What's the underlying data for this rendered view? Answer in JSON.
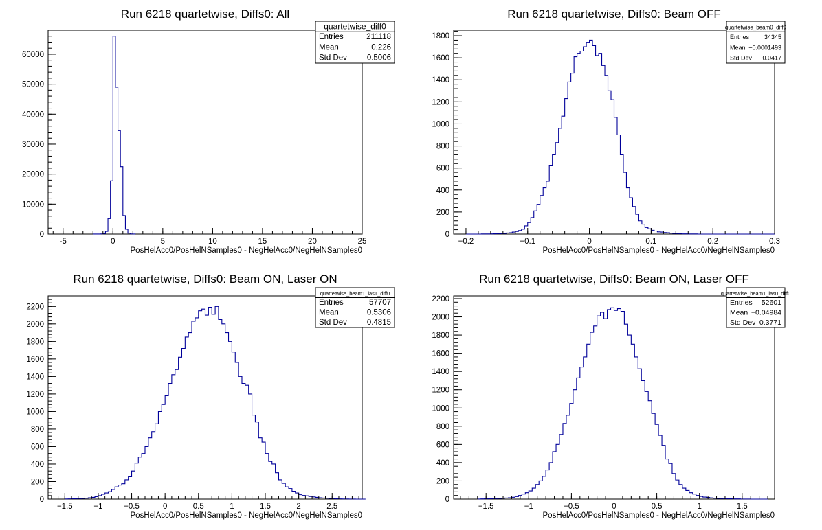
{
  "chart_data": [
    {
      "type": "histogram",
      "title": "Run 6218 quartetwise, Diffs0: All",
      "xlabel": "PosHelAcc0/PosHelNSamples0 - NegHelAcc0/NegHelNSamples0",
      "ylabel": "",
      "xlim": [
        -6.5,
        25
      ],
      "ylim": [
        0,
        68000
      ],
      "xticks": [
        "-5",
        "0",
        "5",
        "10",
        "15",
        "20",
        "25"
      ],
      "yticks": [
        "0",
        "10000",
        "20000",
        "30000",
        "40000",
        "50000",
        "60000"
      ],
      "bin_edges_start": -2.0,
      "bin_width": 0.25,
      "values": [
        5,
        10,
        25,
        60,
        180,
        900,
        5200,
        17800,
        66000,
        49000,
        34500,
        22500,
        6200,
        1600,
        300,
        60,
        15
      ],
      "stats": {
        "name": "quartetwise_diff0",
        "rows": [
          [
            "Entries",
            "211118"
          ],
          [
            "Mean",
            "0.226"
          ],
          [
            "Std Dev",
            "0.5006"
          ]
        ]
      }
    },
    {
      "type": "histogram",
      "title": "Run 6218 quartetwise, Diffs0: Beam OFF",
      "xlabel": "PosHelAcc0/PosHelNSamples0 - NegHelAcc0/NegHelNSamples0",
      "ylabel": "",
      "xlim": [
        -0.22,
        0.3
      ],
      "ylim": [
        0,
        1850
      ],
      "xticks": [
        "−0.2",
        "−0.1",
        "0",
        "0.1",
        "0.2",
        "0.3"
      ],
      "yticks": [
        "0",
        "200",
        "400",
        "600",
        "800",
        "1000",
        "1200",
        "1400",
        "1600",
        "1800"
      ],
      "bin_edges_start": -0.2,
      "bin_width": 0.005,
      "values": [
        0,
        0,
        0,
        0,
        0,
        1,
        1,
        1,
        2,
        3,
        4,
        4,
        6,
        10,
        12,
        18,
        24,
        32,
        45,
        75,
        105,
        150,
        210,
        270,
        350,
        420,
        480,
        620,
        720,
        830,
        960,
        1070,
        1230,
        1380,
        1460,
        1610,
        1640,
        1660,
        1700,
        1740,
        1760,
        1710,
        1620,
        1640,
        1530,
        1440,
        1300,
        1220,
        1060,
        900,
        720,
        560,
        420,
        330,
        250,
        180,
        120,
        90,
        60,
        48,
        35,
        28,
        20,
        18,
        14,
        12,
        8,
        6,
        5,
        4,
        2,
        2,
        1,
        1,
        1,
        0,
        0,
        0,
        0,
        0,
        0,
        0,
        0,
        0,
        0,
        0,
        0,
        0,
        0,
        0,
        0,
        0,
        0,
        0,
        0,
        0,
        0,
        0,
        0,
        0
      ],
      "stats": {
        "name": "quartetwise_beam0_diff0",
        "rows": [
          [
            "Entries",
            "34345"
          ],
          [
            "Mean",
            "−0.0001493"
          ],
          [
            "Std Dev",
            "0.0417"
          ]
        ]
      }
    },
    {
      "type": "histogram",
      "title": "Run 6218 quartetwise, Diffs0: Beam ON, Laser ON",
      "xlabel": "PosHelAcc0/PosHelNSamples0 - NegHelAcc0/NegHelNSamples0",
      "ylabel": "",
      "xlim": [
        -1.75,
        2.95
      ],
      "ylim": [
        0,
        2320
      ],
      "xticks": [
        "−1.5",
        "−1",
        "−0.5",
        "0",
        "0.5",
        "1",
        "1.5",
        "2",
        "2.5"
      ],
      "yticks": [
        "0",
        "200",
        "400",
        "600",
        "800",
        "1000",
        "1200",
        "1400",
        "1600",
        "1800",
        "2000",
        "2200"
      ],
      "bin_edges_start": -1.5,
      "bin_width": 0.05,
      "values": [
        2,
        3,
        4,
        5,
        6,
        8,
        10,
        15,
        20,
        28,
        40,
        55,
        70,
        85,
        110,
        140,
        160,
        175,
        220,
        255,
        320,
        410,
        480,
        520,
        600,
        700,
        770,
        860,
        1000,
        1080,
        1180,
        1320,
        1420,
        1480,
        1620,
        1720,
        1850,
        1900,
        2030,
        2070,
        2150,
        2170,
        2100,
        2190,
        2110,
        2200,
        2050,
        2000,
        1900,
        1800,
        1680,
        1560,
        1400,
        1320,
        1300,
        1200,
        960,
        880,
        700,
        650,
        520,
        430,
        400,
        300,
        220,
        180,
        140,
        120,
        90,
        70,
        50,
        42,
        38,
        30,
        25,
        20,
        15,
        12,
        10,
        8,
        6,
        4,
        3,
        2,
        2,
        1,
        1,
        0,
        0,
        0
      ],
      "stats": {
        "name": "quartetwise_beam1_las1_diff0",
        "rows": [
          [
            "Entries",
            "57707"
          ],
          [
            "Mean",
            "0.5306"
          ],
          [
            "Std Dev",
            "0.4815"
          ]
        ]
      }
    },
    {
      "type": "histogram",
      "title": "Run 6218 quartetwise, Diffs0: Beam ON, Laser OFF",
      "xlabel": "PosHelAcc0/PosHelNSamples0 - NegHelAcc0/NegHelNSamples0",
      "ylabel": "",
      "xlim": [
        -1.88,
        1.88
      ],
      "ylim": [
        0,
        2230
      ],
      "xticks": [
        "−1.5",
        "−1",
        "−0.5",
        "0",
        "0.5",
        "1",
        "1.5"
      ],
      "yticks": [
        "0",
        "200",
        "400",
        "600",
        "800",
        "1000",
        "1200",
        "1400",
        "1600",
        "1800",
        "2000",
        "2200"
      ],
      "bin_edges_start": -1.6,
      "bin_width": 0.04,
      "values": [
        1,
        2,
        3,
        4,
        5,
        6,
        8,
        10,
        12,
        15,
        20,
        28,
        40,
        55,
        70,
        90,
        120,
        160,
        200,
        250,
        320,
        400,
        520,
        600,
        710,
        830,
        920,
        1050,
        1200,
        1330,
        1450,
        1560,
        1700,
        1830,
        1900,
        2010,
        2050,
        1980,
        2080,
        2100,
        2070,
        2090,
        2060,
        1920,
        1800,
        1700,
        1560,
        1430,
        1300,
        1180,
        1080,
        940,
        820,
        700,
        590,
        440,
        390,
        280,
        210,
        160,
        120,
        95,
        70,
        55,
        40,
        30,
        22,
        18,
        14,
        10,
        8,
        6,
        5,
        4,
        3,
        2,
        2,
        1,
        1,
        1,
        0,
        0,
        0,
        0,
        0
      ],
      "stats": {
        "name": "quartetwise_beam1_las0_diff0",
        "rows": [
          [
            "Entries",
            "52601"
          ],
          [
            "Mean",
            "−0.04984"
          ],
          [
            "Std Dev",
            "0.3771"
          ]
        ]
      }
    }
  ],
  "colors": {
    "histogram_line": "#000099",
    "axis": "#000000"
  }
}
